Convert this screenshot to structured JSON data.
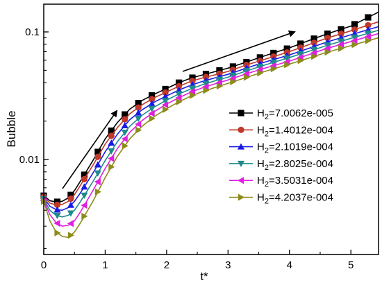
{
  "chart_data": {
    "type": "line",
    "title": "",
    "xlabel": "t*",
    "ylabel": "Bubble",
    "xlim": [
      0,
      5.45
    ],
    "ylim": [
      0.0018,
      0.165
    ],
    "yscale": "log",
    "xticks": [
      "0",
      "1",
      "2",
      "3",
      "4",
      "5"
    ],
    "xtick_values": [
      0,
      1,
      2,
      3,
      4,
      5
    ],
    "yticks": [
      "0.01",
      "0.1"
    ],
    "ytick_values": [
      0.01,
      0.1
    ],
    "grid": false,
    "legend_position": "center-right",
    "marker_times": [
      0.0,
      0.22,
      0.44,
      0.66,
      0.88,
      1.1,
      1.32,
      1.54,
      1.76,
      1.98,
      2.2,
      2.42,
      2.64,
      2.86,
      3.08,
      3.3,
      3.52,
      3.74,
      3.96,
      4.18,
      4.4,
      4.62,
      4.84,
      5.06,
      5.28
    ],
    "series": [
      {
        "name": "H2=7.0062e-005",
        "name_main": "H",
        "name_sub": "2",
        "name_rest": "=7.0062e-005",
        "color": "#000000",
        "marker": "square",
        "x": [
          0,
          0.1,
          0.2,
          0.3,
          0.4,
          0.5,
          0.6,
          0.8,
          1.0,
          1.2,
          1.4,
          1.6,
          1.8,
          2.0,
          2.2,
          2.4,
          2.6,
          2.8,
          3.0,
          3.3,
          3.6,
          4.0,
          4.3,
          4.6,
          5.0,
          5.45
        ],
        "y": [
          0.0052,
          0.00475,
          0.00465,
          0.0047,
          0.005,
          0.0057,
          0.0068,
          0.0098,
          0.0145,
          0.0195,
          0.0248,
          0.029,
          0.0325,
          0.036,
          0.04,
          0.0435,
          0.0462,
          0.049,
          0.052,
          0.058,
          0.065,
          0.075,
          0.085,
          0.096,
          0.111,
          0.143
        ]
      },
      {
        "name": "H2=1.4012e-004",
        "name_main": "H",
        "name_sub": "2",
        "name_rest": "=1.4012e-004",
        "color": "#c0392b",
        "marker": "circle",
        "x": [
          0,
          0.1,
          0.2,
          0.3,
          0.4,
          0.5,
          0.6,
          0.8,
          1.0,
          1.2,
          1.4,
          1.6,
          1.8,
          2.0,
          2.2,
          2.4,
          2.6,
          2.8,
          3.0,
          3.3,
          3.6,
          4.0,
          4.3,
          4.6,
          5.0,
          5.45
        ],
        "y": [
          0.0051,
          0.00455,
          0.0044,
          0.00445,
          0.0047,
          0.0053,
          0.0063,
          0.009,
          0.0132,
          0.0178,
          0.0228,
          0.0268,
          0.0305,
          0.0338,
          0.0375,
          0.041,
          0.0438,
          0.0462,
          0.049,
          0.055,
          0.061,
          0.07,
          0.079,
          0.089,
          0.102,
          0.12
        ]
      },
      {
        "name": "H2=2.1019e-004",
        "name_main": "H",
        "name_sub": "2",
        "name_rest": "=2.1019e-004",
        "color": "#1a1ae6",
        "marker": "triangle-up",
        "x": [
          0,
          0.1,
          0.2,
          0.3,
          0.4,
          0.5,
          0.6,
          0.8,
          1.0,
          1.2,
          1.4,
          1.6,
          1.8,
          2.0,
          2.2,
          2.4,
          2.6,
          2.8,
          3.0,
          3.3,
          3.6,
          4.0,
          4.3,
          4.6,
          5.0,
          5.45
        ],
        "y": [
          0.005,
          0.0043,
          0.00405,
          0.004,
          0.0042,
          0.0047,
          0.0055,
          0.0078,
          0.0115,
          0.0158,
          0.0205,
          0.0245,
          0.0282,
          0.0315,
          0.035,
          0.0383,
          0.0412,
          0.0438,
          0.0465,
          0.052,
          0.058,
          0.066,
          0.074,
          0.083,
          0.095,
          0.11
        ]
      },
      {
        "name": "H2=2.8025e-004",
        "name_main": "H",
        "name_sub": "2",
        "name_rest": "=2.8025e-004",
        "color": "#1f8a8a",
        "marker": "triangle-down",
        "x": [
          0,
          0.1,
          0.2,
          0.3,
          0.4,
          0.5,
          0.6,
          0.8,
          1.0,
          1.2,
          1.4,
          1.6,
          1.8,
          2.0,
          2.2,
          2.4,
          2.6,
          2.8,
          3.0,
          3.3,
          3.6,
          4.0,
          4.3,
          4.6,
          5.0,
          5.45
        ],
        "y": [
          0.0049,
          0.004,
          0.00365,
          0.00355,
          0.00365,
          0.004,
          0.0047,
          0.0067,
          0.0098,
          0.0138,
          0.0182,
          0.0222,
          0.0258,
          0.0292,
          0.0326,
          0.0358,
          0.0388,
          0.0415,
          0.0442,
          0.0495,
          0.055,
          0.063,
          0.07,
          0.078,
          0.089,
          0.103
        ]
      },
      {
        "name": "H2=3.5031e-004",
        "name_main": "H",
        "name_sub": "2",
        "name_rest": "=3.5031e-004",
        "color": "#e020e0",
        "marker": "triangle-left",
        "x": [
          0,
          0.1,
          0.2,
          0.3,
          0.4,
          0.5,
          0.6,
          0.8,
          1.0,
          1.2,
          1.4,
          1.6,
          1.8,
          2.0,
          2.2,
          2.4,
          2.6,
          2.8,
          3.0,
          3.3,
          3.6,
          4.0,
          4.3,
          4.6,
          5.0,
          5.45
        ],
        "y": [
          0.0048,
          0.0037,
          0.0032,
          0.003,
          0.00305,
          0.0033,
          0.0039,
          0.0057,
          0.0085,
          0.0122,
          0.0163,
          0.0202,
          0.0237,
          0.0272,
          0.0305,
          0.0338,
          0.0367,
          0.0393,
          0.042,
          0.047,
          0.052,
          0.059,
          0.066,
          0.074,
          0.084,
          0.097
        ]
      },
      {
        "name": "H2=4.2037e-004",
        "name_main": "H",
        "name_sub": "2",
        "name_rest": "=4.2037e-004",
        "color": "#8c8c1a",
        "marker": "triangle-right",
        "x": [
          0,
          0.1,
          0.2,
          0.3,
          0.4,
          0.5,
          0.6,
          0.8,
          1.0,
          1.2,
          1.4,
          1.6,
          1.8,
          2.0,
          2.2,
          2.4,
          2.6,
          2.8,
          3.0,
          3.3,
          3.6,
          4.0,
          4.3,
          4.6,
          5.0,
          5.45
        ],
        "y": [
          0.0047,
          0.0033,
          0.0027,
          0.0025,
          0.00245,
          0.0027,
          0.0032,
          0.0047,
          0.0072,
          0.0106,
          0.0145,
          0.0182,
          0.0217,
          0.025,
          0.0283,
          0.0315,
          0.0343,
          0.0368,
          0.0395,
          0.044,
          0.049,
          0.056,
          0.062,
          0.069,
          0.078,
          0.09
        ]
      }
    ]
  }
}
